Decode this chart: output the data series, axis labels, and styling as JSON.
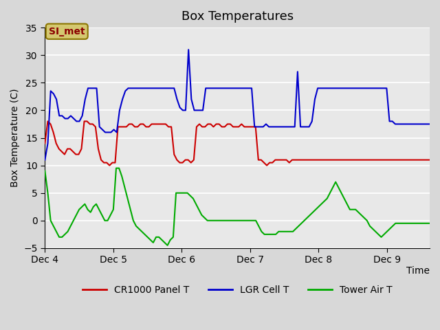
{
  "title": "Box Temperatures",
  "xlabel": "Time",
  "ylabel": "Box Temperature (C)",
  "ylim": [
    -5,
    35
  ],
  "yticks": [
    -5,
    0,
    5,
    10,
    15,
    20,
    25,
    30,
    35
  ],
  "background_color": "#e8e8e8",
  "plot_bg_color": "#e8e8e8",
  "grid_color": "#ffffff",
  "annotation_text": "SI_met",
  "annotation_bg": "#d4c870",
  "annotation_border": "#8b7500",
  "line_colors": {
    "panel": "#cc0000",
    "lgr": "#0000cc",
    "tower": "#00aa00"
  },
  "legend_labels": [
    "CR1000 Panel T",
    "LGR Cell T",
    "Tower Air T"
  ],
  "xtick_labels": [
    "Dec 4",
    "Dec 5",
    "Dec 6",
    "Dec 7",
    "Dec 8",
    "Dec 9"
  ],
  "xtick_positions": [
    0,
    24,
    48,
    72,
    96,
    120
  ],
  "panel_t": [
    14,
    18,
    17.5,
    16,
    14,
    13,
    12.5,
    12,
    13,
    13,
    12.5,
    12,
    12,
    13,
    18,
    18,
    17.5,
    17.5,
    17,
    13,
    11,
    10.5,
    10.5,
    10,
    10.5,
    10.5,
    17,
    17,
    17,
    17,
    17.5,
    17.5,
    17,
    17,
    17.5,
    17.5,
    17,
    17,
    17.5,
    17.5,
    17.5,
    17.5,
    17.5,
    17.5,
    17,
    17,
    12,
    11,
    10.5,
    10.5,
    11,
    11,
    10.5,
    11,
    17,
    17.5,
    17,
    17,
    17.5,
    17.5,
    17,
    17.5,
    17.5,
    17,
    17,
    17.5,
    17.5,
    17,
    17,
    17,
    17.5,
    17,
    17,
    17,
    17,
    17,
    11,
    11,
    10.5,
    10,
    10.5,
    10.5,
    11,
    11,
    11,
    11,
    11,
    10.5,
    11,
    11,
    11,
    11,
    11,
    11,
    11,
    11,
    11,
    11,
    11,
    11,
    11,
    11,
    11,
    11,
    11,
    11,
    11,
    11,
    11,
    11,
    11,
    11,
    11,
    11,
    11,
    11,
    11,
    11,
    11,
    11,
    11,
    11,
    11,
    11,
    11,
    11,
    11,
    11,
    11,
    11,
    11,
    11,
    11,
    11,
    11,
    11,
    11,
    11
  ],
  "lgr_t": [
    11,
    14,
    23.5,
    23,
    22,
    19,
    19,
    18.5,
    18.5,
    19,
    18.5,
    18,
    18,
    19,
    22,
    24,
    24,
    24,
    24,
    17,
    16.5,
    16,
    16,
    16,
    16.5,
    16,
    20,
    22,
    23.5,
    24,
    24,
    24,
    24,
    24,
    24,
    24,
    24,
    24,
    24,
    24,
    24,
    24,
    24,
    24,
    24,
    24,
    22,
    20.5,
    20,
    20,
    31,
    22,
    20,
    20,
    20,
    20,
    24,
    24,
    24,
    24,
    24,
    24,
    24,
    24,
    24,
    24,
    24,
    24,
    24,
    24,
    24,
    24,
    24,
    17,
    17,
    17,
    17,
    17.5,
    17,
    17,
    17,
    17,
    17,
    17,
    17,
    17,
    17,
    17,
    27,
    17,
    17,
    17,
    17,
    18,
    22,
    24,
    24,
    24,
    24,
    24,
    24,
    24,
    24,
    24,
    24,
    24,
    24,
    24,
    24,
    24,
    24,
    24,
    24,
    24,
    24,
    24,
    24,
    24,
    24,
    24,
    18,
    18,
    17.5,
    17.5,
    17.5,
    17.5,
    17.5,
    17.5,
    17.5,
    17.5,
    17.5,
    17.5,
    17.5,
    17.5,
    17.5
  ],
  "tower_t": [
    9,
    5,
    0,
    -1,
    -2,
    -3,
    -3,
    -2.5,
    -2,
    -1,
    0,
    1,
    2,
    2.5,
    3,
    2,
    1.5,
    2.5,
    3,
    2,
    1,
    0,
    0,
    1,
    2,
    9.5,
    9.5,
    8,
    6,
    4,
    2,
    0,
    -1,
    -1.5,
    -2,
    -2.5,
    -3,
    -3.5,
    -4,
    -3,
    -3,
    -3.5,
    -4,
    -4.5,
    -3.5,
    -3,
    5,
    5,
    5,
    5,
    5,
    4.5,
    4,
    3,
    2,
    1,
    0.5,
    0,
    0,
    0,
    0,
    0,
    0,
    0,
    0,
    0,
    0,
    0,
    0,
    0,
    0,
    0,
    0,
    0,
    0,
    -1,
    -2,
    -2.5,
    -2.5,
    -2.5,
    -2.5,
    -2.5,
    -2,
    -2,
    -2,
    -2,
    -2,
    -2,
    -1.5,
    -1,
    -0.5,
    0,
    0.5,
    1,
    1.5,
    2,
    2.5,
    3,
    3.5,
    4,
    5,
    6,
    7,
    6,
    5,
    4,
    3,
    2,
    2,
    2,
    1.5,
    1,
    0.5,
    0,
    -1,
    -1.5,
    -2,
    -2.5,
    -3,
    -2.5,
    -2,
    -1.5,
    -1,
    -0.5,
    -0.5,
    -0.5,
    -0.5,
    -0.5,
    -0.5,
    -0.5,
    -0.5,
    -0.5,
    -0.5,
    -0.5,
    -0.5,
    -0.5
  ]
}
